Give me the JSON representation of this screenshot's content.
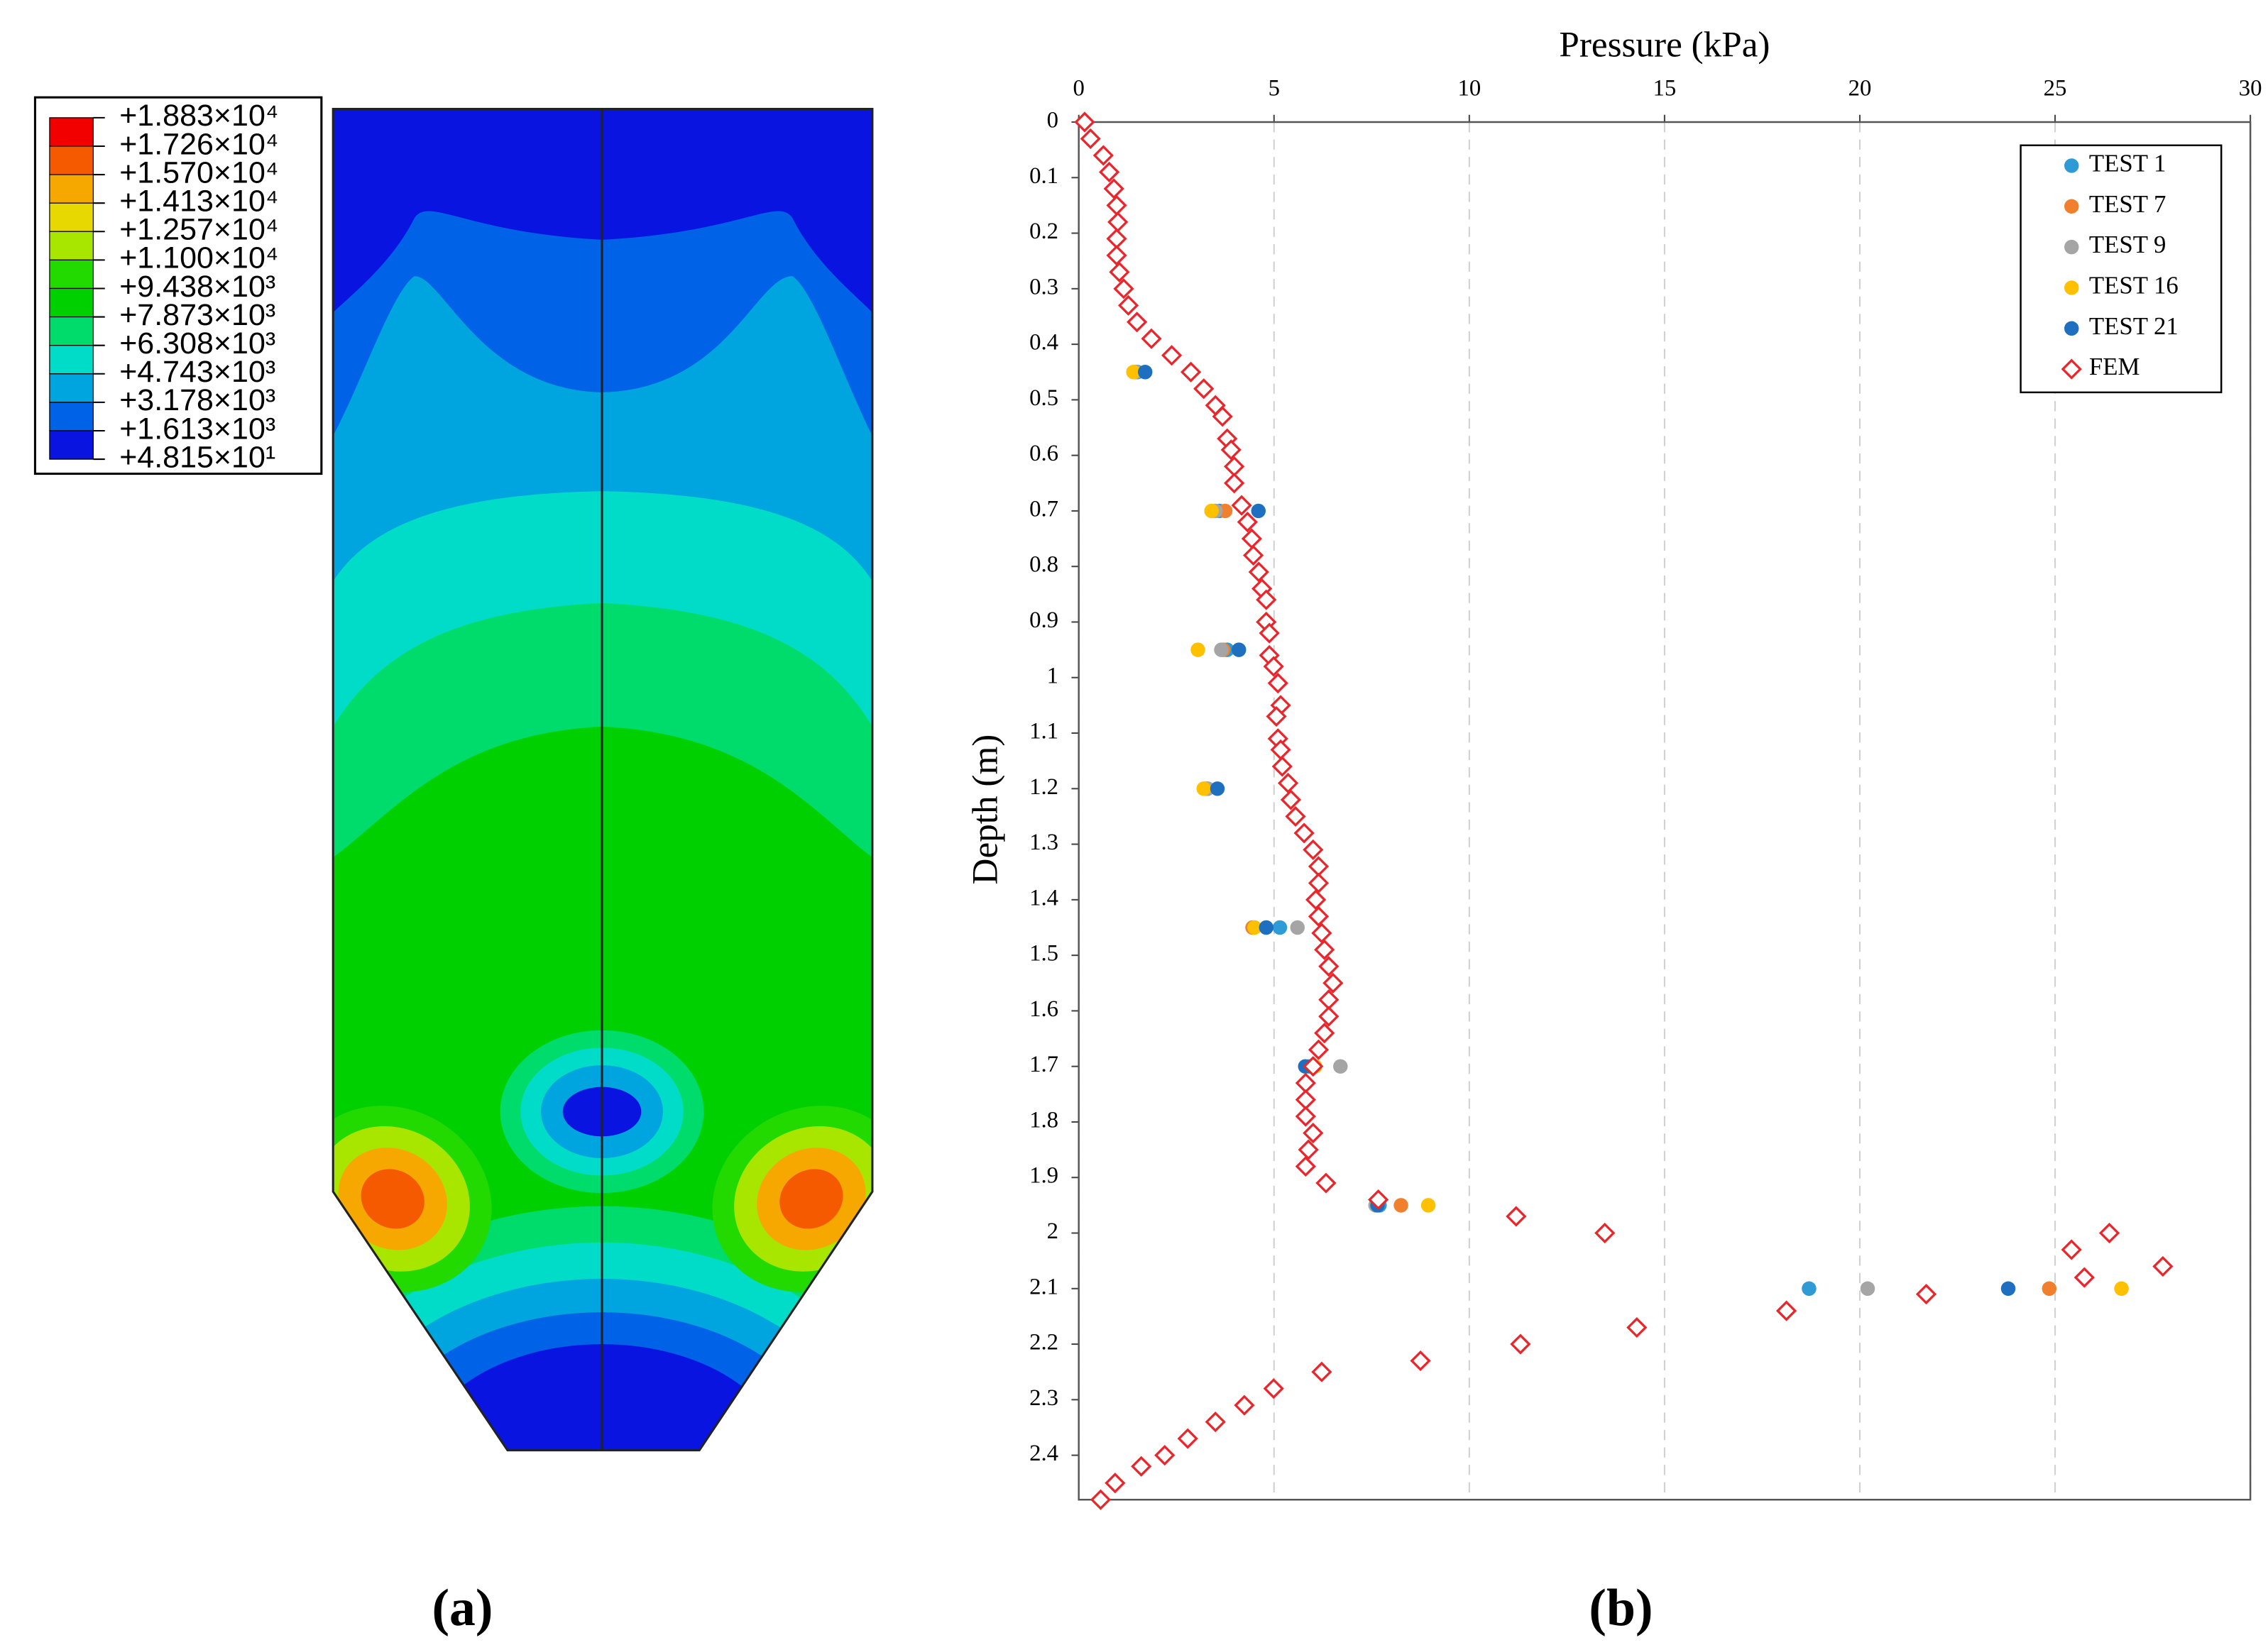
{
  "chart_data": [
    {
      "type": "contour",
      "panel_label": "(a)",
      "legend": {
        "labels": [
          "+1.883×10⁴",
          "+1.726×10⁴",
          "+1.570×10⁴",
          "+1.413×10⁴",
          "+1.257×10⁴",
          "+1.100×10⁴",
          "+9.438×10³",
          "+7.873×10³",
          "+6.308×10³",
          "+4.743×10³",
          "+3.178×10³",
          "+1.613×10³",
          "+4.815×10¹"
        ],
        "colors": [
          "#f20000",
          "#f55a00",
          "#f7a800",
          "#e6d800",
          "#a8e600",
          "#22d900",
          "#00d000",
          "#00dc6c",
          "#00dcc8",
          "#00a4de",
          "#0062e6",
          "#0a14e0"
        ]
      }
    },
    {
      "type": "scatter",
      "panel_label": "(b)",
      "xlabel": "Pressure (kPa)",
      "ylabel": "Depth (m)",
      "xlim": [
        0,
        30
      ],
      "xticks": [
        0,
        5,
        10,
        15,
        20,
        25,
        30
      ],
      "ylim": [
        0,
        2.48
      ],
      "yticks": [
        0,
        0.1,
        0.2,
        0.3,
        0.4,
        0.5,
        0.6,
        0.7,
        0.8,
        0.9,
        1,
        1.1,
        1.2,
        1.3,
        1.4,
        1.5,
        1.6,
        1.7,
        1.8,
        1.9,
        2,
        2.1,
        2.2,
        2.3,
        2.4
      ],
      "y_inverted": true,
      "x_axis_position": "top",
      "grid": "x",
      "legend": "upper right",
      "series": [
        {
          "name": "TEST 1",
          "color": "#2e9bd6",
          "marker": "circle",
          "x": [
            1.5,
            3.6,
            3.8,
            3.3,
            5.15,
            5.9,
            7.7,
            18.7
          ],
          "y": [
            0.45,
            0.7,
            0.95,
            1.2,
            1.45,
            1.7,
            1.95,
            2.1
          ]
        },
        {
          "name": "TEST 7",
          "color": "#f07f2e",
          "marker": "circle",
          "x": [
            1.45,
            3.75,
            3.7,
            3.25,
            4.45,
            6.0,
            8.25,
            24.85
          ],
          "y": [
            0.45,
            0.7,
            0.95,
            1.2,
            1.45,
            1.7,
            1.95,
            2.1
          ]
        },
        {
          "name": "TEST 9",
          "color": "#a5a5a5",
          "marker": "circle",
          "x": [
            1.45,
            3.5,
            3.65,
            3.3,
            5.6,
            6.7,
            7.6,
            20.2
          ],
          "y": [
            0.45,
            0.7,
            0.95,
            1.2,
            1.45,
            1.7,
            1.95,
            2.1
          ]
        },
        {
          "name": "TEST 16",
          "color": "#ffc000",
          "marker": "circle",
          "x": [
            1.4,
            3.4,
            3.05,
            3.2,
            4.5,
            6.05,
            8.95,
            26.7
          ],
          "y": [
            0.45,
            0.7,
            0.95,
            1.2,
            1.45,
            1.7,
            1.95,
            2.1
          ]
        },
        {
          "name": "TEST 21",
          "color": "#1f6fc0",
          "marker": "circle",
          "x": [
            1.7,
            4.6,
            4.1,
            3.55,
            4.8,
            5.8,
            7.65,
            23.8
          ],
          "y": [
            0.45,
            0.7,
            0.95,
            1.2,
            1.45,
            1.7,
            1.95,
            2.1
          ]
        },
        {
          "name": "FEM",
          "color": "#e8262b",
          "marker": "diamond",
          "x": [
            0.15,
            0.3,
            0.63,
            0.78,
            0.9,
            0.97,
            1.0,
            0.97,
            0.97,
            1.04,
            1.15,
            1.27,
            1.49,
            1.86,
            2.38,
            2.87,
            3.2,
            3.5,
            3.68,
            3.8,
            3.9,
            3.98,
            3.98,
            4.17,
            4.32,
            4.43,
            4.47,
            4.61,
            4.69,
            4.8,
            4.8,
            4.88,
            4.88,
            4.99,
            5.1,
            5.17,
            5.06,
            5.1,
            5.17,
            5.21,
            5.36,
            5.43,
            5.55,
            5.77,
            6.0,
            6.14,
            6.14,
            6.07,
            6.14,
            6.22,
            6.29,
            6.4,
            6.51,
            6.4,
            6.4,
            6.29,
            6.14,
            6.0,
            5.81,
            5.81,
            5.81,
            6.0,
            5.88,
            5.81,
            6.33,
            7.67,
            11.2,
            13.47,
            26.39,
            25.42,
            27.76,
            25.75,
            21.7,
            18.12,
            14.29,
            11.31,
            8.75,
            6.22,
            4.99,
            4.24,
            3.5,
            2.79,
            2.2,
            1.6,
            0.93,
            0.56
          ],
          "y": [
            0.0,
            0.03,
            0.06,
            0.09,
            0.12,
            0.15,
            0.18,
            0.21,
            0.24,
            0.27,
            0.3,
            0.33,
            0.36,
            0.39,
            0.42,
            0.45,
            0.48,
            0.51,
            0.53,
            0.57,
            0.59,
            0.62,
            0.65,
            0.69,
            0.72,
            0.75,
            0.78,
            0.81,
            0.84,
            0.86,
            0.9,
            0.92,
            0.96,
            0.98,
            1.01,
            1.05,
            1.07,
            1.11,
            1.13,
            1.16,
            1.19,
            1.22,
            1.25,
            1.28,
            1.31,
            1.34,
            1.37,
            1.4,
            1.43,
            1.46,
            1.49,
            1.52,
            1.55,
            1.58,
            1.61,
            1.64,
            1.67,
            1.7,
            1.73,
            1.76,
            1.79,
            1.82,
            1.85,
            1.88,
            1.91,
            1.94,
            1.97,
            2.0,
            2.0,
            2.03,
            2.06,
            2.08,
            2.11,
            2.14,
            2.17,
            2.2,
            2.23,
            2.25,
            2.28,
            2.31,
            2.34,
            2.37,
            2.4,
            2.42,
            2.45,
            2.48
          ]
        }
      ]
    }
  ]
}
